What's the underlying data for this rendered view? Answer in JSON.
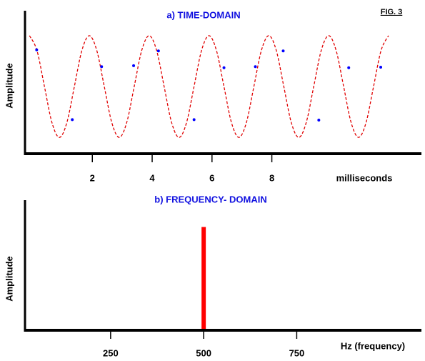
{
  "figure_label": "FIG. 3",
  "chart_data": [
    {
      "type": "line",
      "title": "a)   TIME-DOMAIN",
      "xlabel": "milliseconds",
      "ylabel": "Amplitude",
      "xlim": [
        -0.25,
        13
      ],
      "ylim": [
        -1.32,
        1.49
      ],
      "xticks": [
        2,
        4,
        6,
        8
      ],
      "series": [
        {
          "color": "#e00000",
          "dash": true,
          "x": [
            -0.1,
            0.15,
            0.4,
            0.65,
            0.9,
            1.15,
            1.4,
            1.65,
            1.9,
            2.15,
            2.4,
            2.65,
            2.9,
            3.15,
            3.4,
            3.65,
            3.9,
            4.15,
            4.4,
            4.65,
            4.9,
            5.15,
            5.4,
            5.65,
            5.9,
            6.15,
            6.4,
            6.65,
            6.9,
            7.15,
            7.4,
            7.65,
            7.9,
            8.15,
            8.4,
            8.65,
            8.9,
            9.15,
            9.4,
            9.65,
            9.9,
            10.15,
            10.4,
            10.65,
            10.9,
            11.15,
            11.4,
            11.65,
            11.9
          ],
          "values": [
            1,
            0.707,
            0,
            -0.707,
            -1,
            -0.707,
            0,
            0.707,
            1,
            0.707,
            0,
            -0.707,
            -1,
            -0.707,
            0,
            0.707,
            1,
            0.707,
            0,
            -0.707,
            -1,
            -0.707,
            0,
            0.707,
            1,
            0.707,
            0,
            -0.707,
            -1,
            -0.707,
            0,
            0.707,
            1,
            0.707,
            0,
            -0.707,
            -1,
            -0.707,
            0,
            0.707,
            1,
            0.707,
            0,
            -0.707,
            -1,
            -0.707,
            0,
            0.707,
            1
          ]
        },
        {
          "color": "#0000ff",
          "marker": true,
          "x": [
            0.14,
            1.33,
            2.31,
            3.38,
            4.21,
            5.4,
            6.4,
            7.45,
            8.38,
            9.57,
            10.57,
            11.64
          ],
          "values": [
            0.72,
            -0.65,
            0.39,
            0.41,
            0.7,
            -0.65,
            0.37,
            0.39,
            0.7,
            -0.66,
            0.37,
            0.38
          ]
        }
      ]
    },
    {
      "type": "bar",
      "title": "b)  FREQUENCY- DOMAIN",
      "xlabel": "Hz (frequency)",
      "ylabel": "Amplitude",
      "xlim": [
        20,
        1085
      ],
      "ylim": [
        0,
        1.26
      ],
      "xticks": [
        250,
        500,
        750
      ],
      "x": [
        500
      ],
      "values": [
        1
      ],
      "color": "#ff0000"
    }
  ]
}
